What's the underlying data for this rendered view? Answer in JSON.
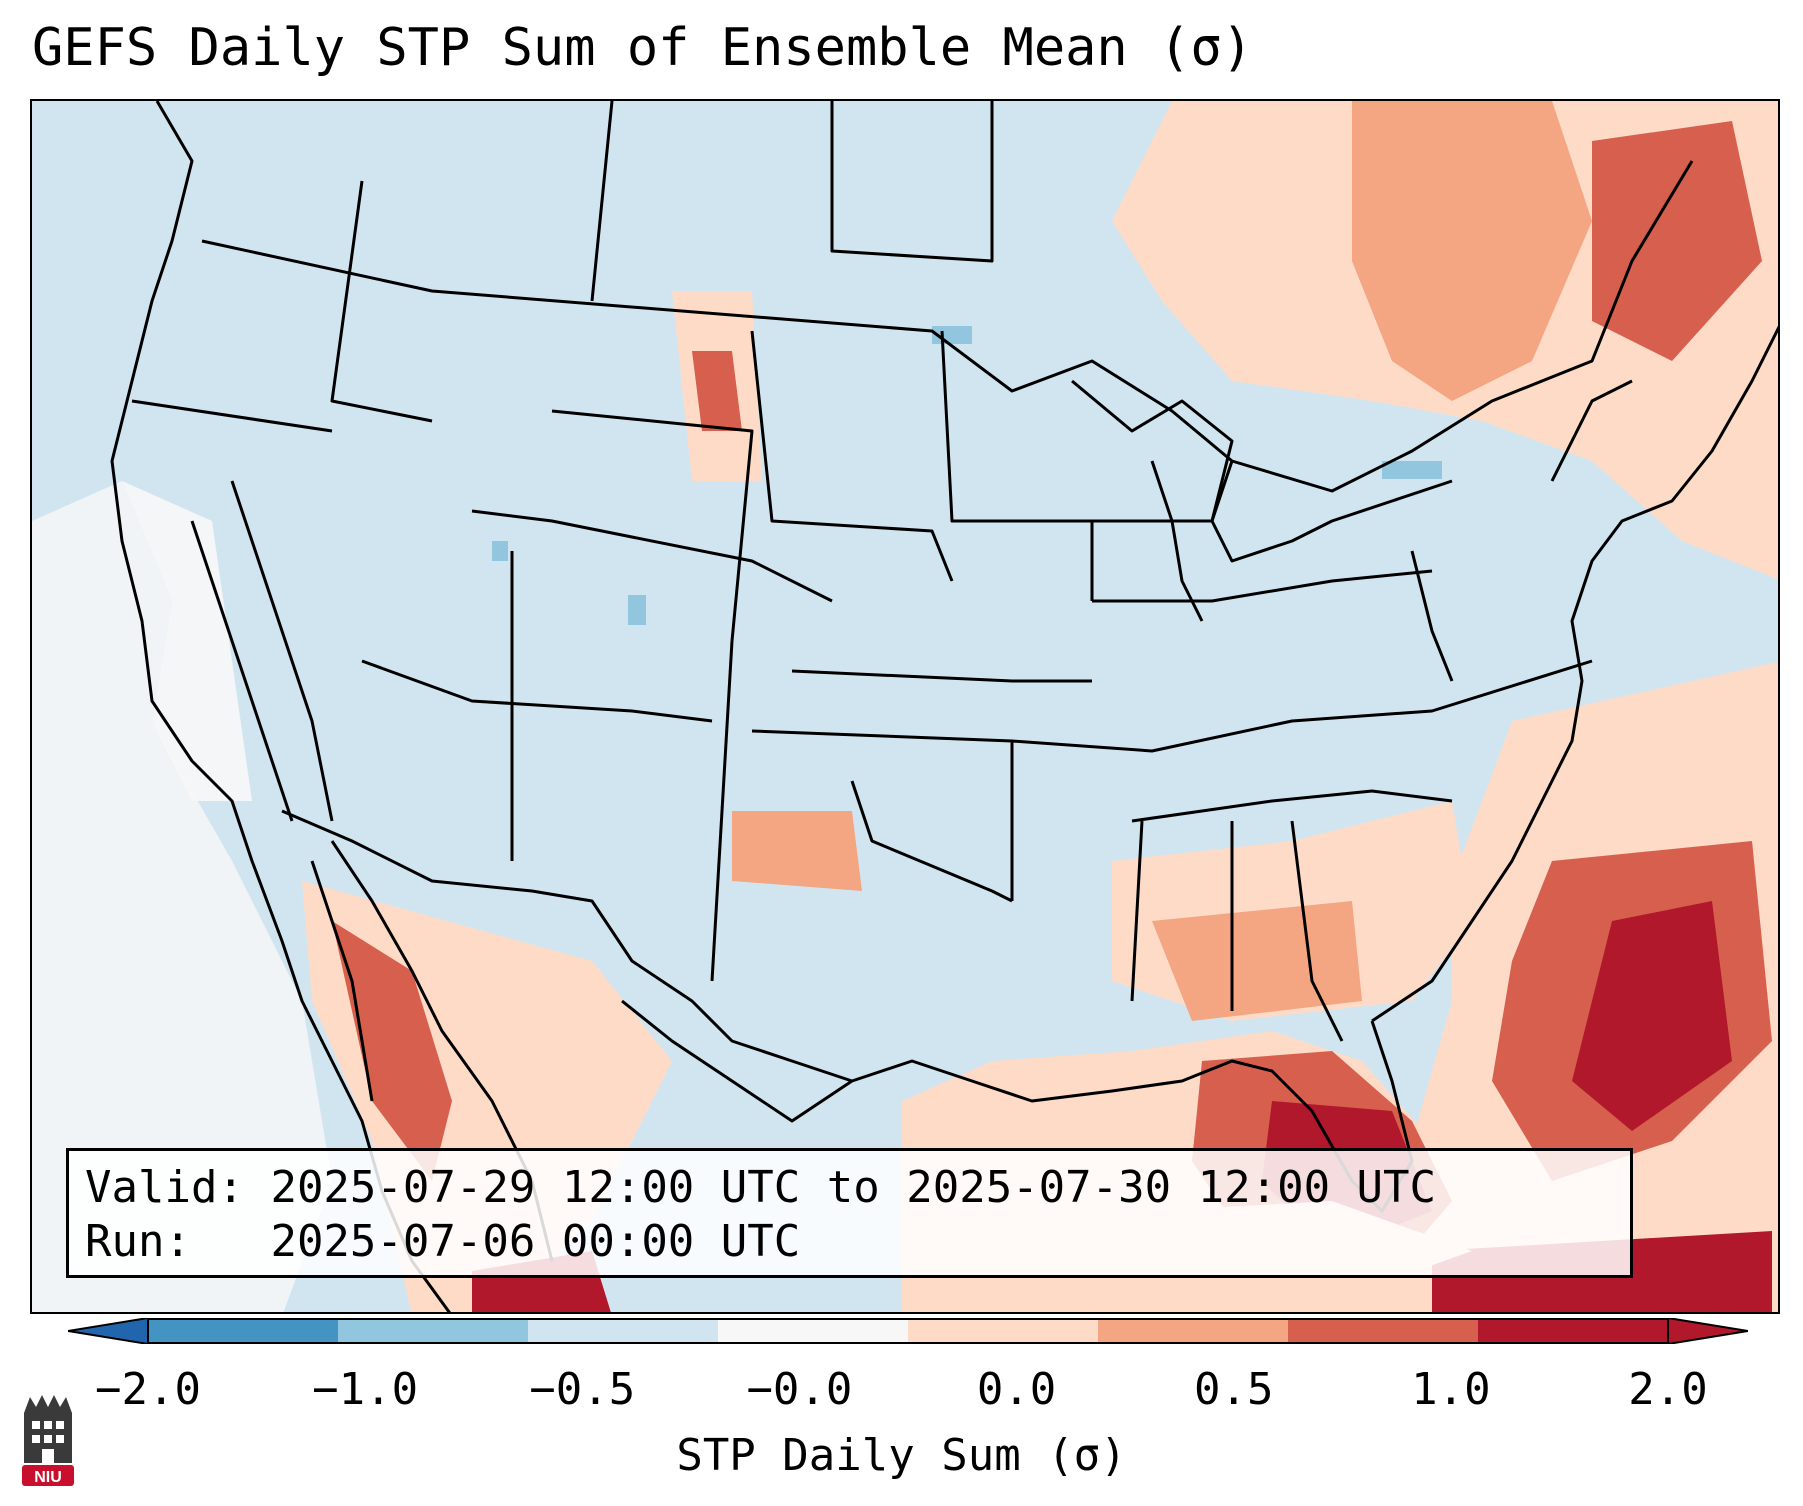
{
  "title": "GEFS Daily STP Sum of Ensemble Mean (σ)",
  "info": {
    "valid_label": "Valid:",
    "valid_value": "2025-07-29 12:00 UTC to 2025-07-30 12:00 UTC",
    "run_label": "Run:",
    "run_value": "2025-07-06 00:00 UTC"
  },
  "colorbar": {
    "label": "STP Daily Sum (σ)",
    "ticks": [
      "−2.0",
      "−1.0",
      "−0.5",
      "−0.0",
      "0.0",
      "0.5",
      "1.0",
      "2.0"
    ],
    "colors": [
      "#4393c3",
      "#92c5de",
      "#d1e5f0",
      "#f7f7f7",
      "#fddbc7",
      "#f4a582",
      "#d6604d",
      "#b2182b"
    ],
    "extend_low_color": "#2166ac",
    "extend_high_color": "#b2182b"
  },
  "map": {
    "projection": "Lambert Conformal",
    "region": "CONUS",
    "background_color": "#d1e5f0"
  },
  "logo": {
    "text": "NIU"
  }
}
